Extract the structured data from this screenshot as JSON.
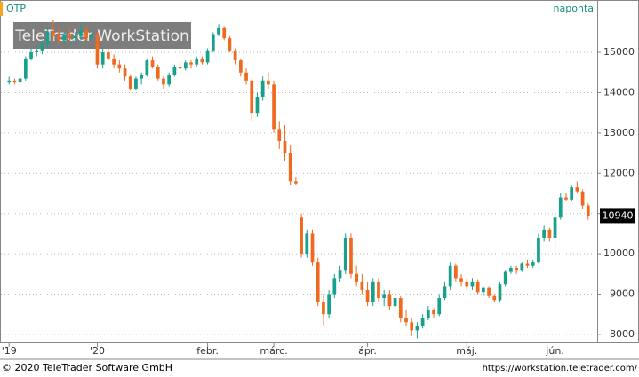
{
  "chart_data": {
    "type": "candlestick",
    "title": "OTP",
    "subtitle": "naponta",
    "watermark": "TeleTrader WorkStation",
    "colors": {
      "up": "#17a08b",
      "down": "#ee6a20"
    },
    "grid": true,
    "ylim": [
      7800,
      15860
    ],
    "yticks": [
      8000,
      9000,
      10000,
      11000,
      12000,
      13000,
      14000,
      15000
    ],
    "xlim": [
      -1,
      106
    ],
    "xticks": [
      {
        "value": 0,
        "label": "'19"
      },
      {
        "value": 16,
        "label": "'20"
      },
      {
        "value": 36,
        "label": "febr."
      },
      {
        "value": 48,
        "label": "márc."
      },
      {
        "value": 65,
        "label": "ápr."
      },
      {
        "value": 83,
        "label": "máj."
      },
      {
        "value": 99,
        "label": "jún."
      }
    ],
    "last_price": 10940,
    "ohlc": [
      [
        14250,
        14400,
        14200,
        14300
      ],
      [
        14300,
        14350,
        14200,
        14250
      ],
      [
        14250,
        14400,
        14200,
        14350
      ],
      [
        14350,
        14900,
        14300,
        14850
      ],
      [
        14850,
        15100,
        14800,
        15000
      ],
      [
        15000,
        15200,
        14900,
        15050
      ],
      [
        15050,
        15300,
        14950,
        15200
      ],
      [
        15200,
        15600,
        15100,
        15500
      ],
      [
        15500,
        15800,
        15300,
        15400
      ],
      [
        15400,
        15600,
        15200,
        15300
      ],
      [
        15300,
        15500,
        15200,
        15450
      ],
      [
        15450,
        15600,
        15300,
        15350
      ],
      [
        15350,
        15500,
        15200,
        15400
      ],
      [
        15400,
        15700,
        15300,
        15550
      ],
      [
        15550,
        15650,
        15300,
        15350
      ],
      [
        15350,
        15500,
        15250,
        15450
      ],
      [
        15450,
        15500,
        14600,
        14700
      ],
      [
        14700,
        15100,
        14600,
        15000
      ],
      [
        15000,
        15100,
        14800,
        14850
      ],
      [
        14850,
        14950,
        14600,
        14700
      ],
      [
        14700,
        14800,
        14500,
        14600
      ],
      [
        14600,
        14700,
        14300,
        14400
      ],
      [
        14400,
        14450,
        14050,
        14100
      ],
      [
        14100,
        14400,
        14050,
        14350
      ],
      [
        14350,
        14500,
        14200,
        14450
      ],
      [
        14450,
        14850,
        14400,
        14800
      ],
      [
        14800,
        14900,
        14600,
        14650
      ],
      [
        14650,
        14700,
        14300,
        14350
      ],
      [
        14350,
        14400,
        14100,
        14200
      ],
      [
        14200,
        14500,
        14150,
        14450
      ],
      [
        14450,
        14700,
        14400,
        14650
      ],
      [
        14650,
        14750,
        14500,
        14600
      ],
      [
        14600,
        14800,
        14550,
        14750
      ],
      [
        14750,
        14800,
        14600,
        14700
      ],
      [
        14700,
        14900,
        14650,
        14850
      ],
      [
        14850,
        14900,
        14700,
        14750
      ],
      [
        14750,
        15100,
        14700,
        15050
      ],
      [
        15050,
        15500,
        15000,
        15450
      ],
      [
        15450,
        15700,
        15400,
        15600
      ],
      [
        15600,
        15650,
        15300,
        15350
      ],
      [
        15350,
        15400,
        15000,
        15050
      ],
      [
        15050,
        15100,
        14700,
        14800
      ],
      [
        14800,
        14850,
        14400,
        14500
      ],
      [
        14500,
        14600,
        14200,
        14300
      ],
      [
        14300,
        14350,
        13300,
        13500
      ],
      [
        13500,
        14000,
        13400,
        13900
      ],
      [
        13900,
        14400,
        13800,
        14300
      ],
      [
        14300,
        14500,
        14100,
        14200
      ],
      [
        14200,
        14300,
        13000,
        13100
      ],
      [
        13100,
        13300,
        12600,
        12800
      ],
      [
        12800,
        13200,
        12300,
        12500
      ],
      [
        12500,
        12700,
        11700,
        11800
      ],
      [
        11800,
        11900,
        11700,
        11750
      ],
      [
        10900,
        11000,
        9900,
        10000
      ],
      [
        10000,
        10600,
        9900,
        10500
      ],
      [
        10500,
        10600,
        9700,
        9800
      ],
      [
        9800,
        9900,
        8700,
        8800
      ],
      [
        8800,
        9000,
        8200,
        8500
      ],
      [
        8500,
        9100,
        8400,
        9000
      ],
      [
        9000,
        9500,
        8900,
        9400
      ],
      [
        9400,
        9700,
        9300,
        9600
      ],
      [
        9600,
        10500,
        9500,
        10400
      ],
      [
        10400,
        10500,
        9400,
        9500
      ],
      [
        9500,
        9700,
        9200,
        9300
      ],
      [
        9300,
        9500,
        9000,
        9100
      ],
      [
        9100,
        9300,
        8700,
        8800
      ],
      [
        8800,
        9400,
        8700,
        9300
      ],
      [
        9300,
        9400,
        8800,
        8900
      ],
      [
        8900,
        9100,
        8700,
        9000
      ],
      [
        9000,
        9100,
        8600,
        8700
      ],
      [
        8700,
        9000,
        8600,
        8900
      ],
      [
        8900,
        8950,
        8300,
        8400
      ],
      [
        8400,
        8600,
        8200,
        8300
      ],
      [
        8300,
        8400,
        7950,
        8100
      ],
      [
        8100,
        8300,
        7900,
        8200
      ],
      [
        8200,
        8500,
        8150,
        8400
      ],
      [
        8400,
        8700,
        8350,
        8600
      ],
      [
        8600,
        8650,
        8400,
        8500
      ],
      [
        8500,
        9000,
        8450,
        8900
      ],
      [
        8900,
        9300,
        8850,
        9200
      ],
      [
        9200,
        9800,
        9100,
        9700
      ],
      [
        9700,
        9750,
        9300,
        9400
      ],
      [
        9400,
        9500,
        9200,
        9300
      ],
      [
        9300,
        9400,
        9100,
        9200
      ],
      [
        9200,
        9400,
        9100,
        9300
      ],
      [
        9300,
        9350,
        9000,
        9050
      ],
      [
        9050,
        9200,
        8950,
        9150
      ],
      [
        9150,
        9200,
        8900,
        8950
      ],
      [
        8950,
        9000,
        8800,
        8850
      ],
      [
        8850,
        9300,
        8800,
        9250
      ],
      [
        9250,
        9600,
        9200,
        9550
      ],
      [
        9550,
        9700,
        9500,
        9650
      ],
      [
        9650,
        9700,
        9500,
        9600
      ],
      [
        9600,
        9800,
        9550,
        9750
      ],
      [
        9750,
        9850,
        9650,
        9700
      ],
      [
        9700,
        9850,
        9650,
        9800
      ],
      [
        9800,
        10500,
        9750,
        10400
      ],
      [
        10400,
        10700,
        10300,
        10600
      ],
      [
        10600,
        10650,
        10300,
        10400
      ],
      [
        10400,
        11000,
        10100,
        10900
      ],
      [
        10900,
        11500,
        10850,
        11400
      ],
      [
        11400,
        11500,
        11300,
        11350
      ],
      [
        11350,
        11700,
        11300,
        11650
      ],
      [
        11650,
        11800,
        11500,
        11550
      ],
      [
        11550,
        11600,
        11100,
        11200
      ],
      [
        11200,
        11250,
        10850,
        10940
      ]
    ]
  },
  "footer": {
    "copyright": "© 2020 TeleTrader Software GmbH",
    "url": "https://workstation.teletrader.com/"
  }
}
